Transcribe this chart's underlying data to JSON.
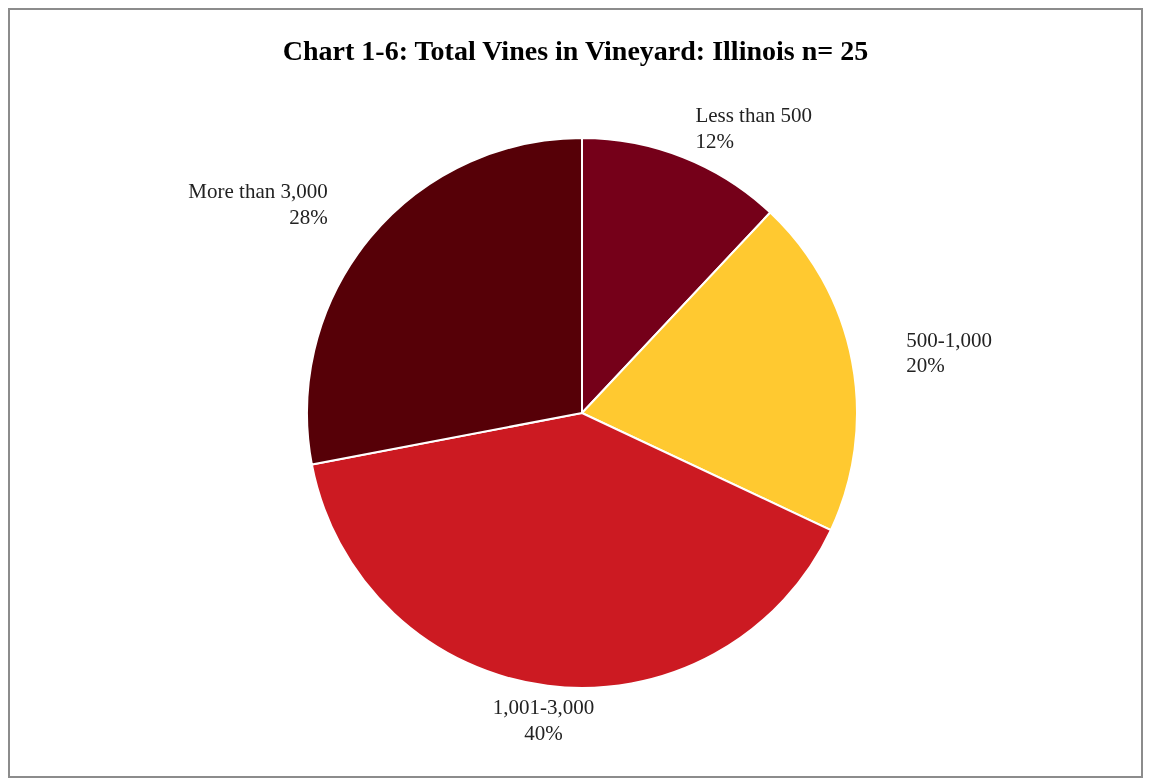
{
  "chart_data": {
    "type": "pie",
    "title": "Chart 1-6: Total Vines in Vineyard: Illinois  n= 25",
    "categories": [
      "Less than 500",
      "500-1,000",
      "1,001-3,000",
      "More than 3,000"
    ],
    "values": [
      12,
      20,
      40,
      28
    ],
    "colors": [
      "#750019",
      "#ffc930",
      "#cc1a22",
      "#560007"
    ],
    "value_labels": [
      "12%",
      "20%",
      "40%",
      "28%"
    ]
  }
}
